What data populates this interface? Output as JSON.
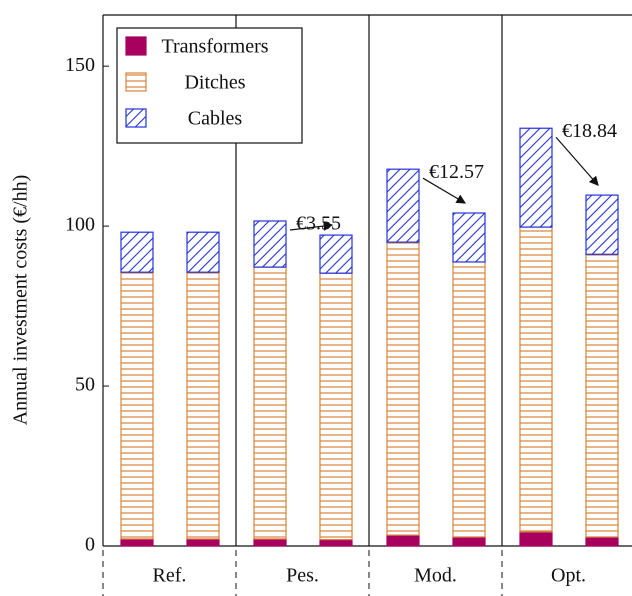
{
  "chart_data": {
    "type": "grouped-stacked-bar",
    "y_label": "Annual investment costs (€/hh)",
    "groups": [
      "Ref.",
      "Pes.",
      "Mod.",
      "Opt."
    ],
    "series": [
      {
        "name": "Transformers",
        "color": "#a8005e",
        "values": [
          2.2,
          2.2,
          2.2,
          2.0,
          3.4,
          2.8,
          4.4,
          2.8
        ]
      },
      {
        "name": "Ditches",
        "color": "#d9823b",
        "values": [
          83.4,
          83.4,
          85.0,
          83.3,
          91.6,
          86.0,
          95.3,
          88.4
        ]
      },
      {
        "name": "Cables",
        "color": "#2233dd",
        "values": [
          12.5,
          12.5,
          14.4,
          11.9,
          22.8,
          15.3,
          30.9,
          18.5
        ]
      }
    ],
    "annotations": [
      "€3.55",
      "€12.57",
      "€18.84"
    ],
    "ylim": [
      0,
      166
    ],
    "yticks": [
      0,
      50,
      100,
      150
    ]
  }
}
